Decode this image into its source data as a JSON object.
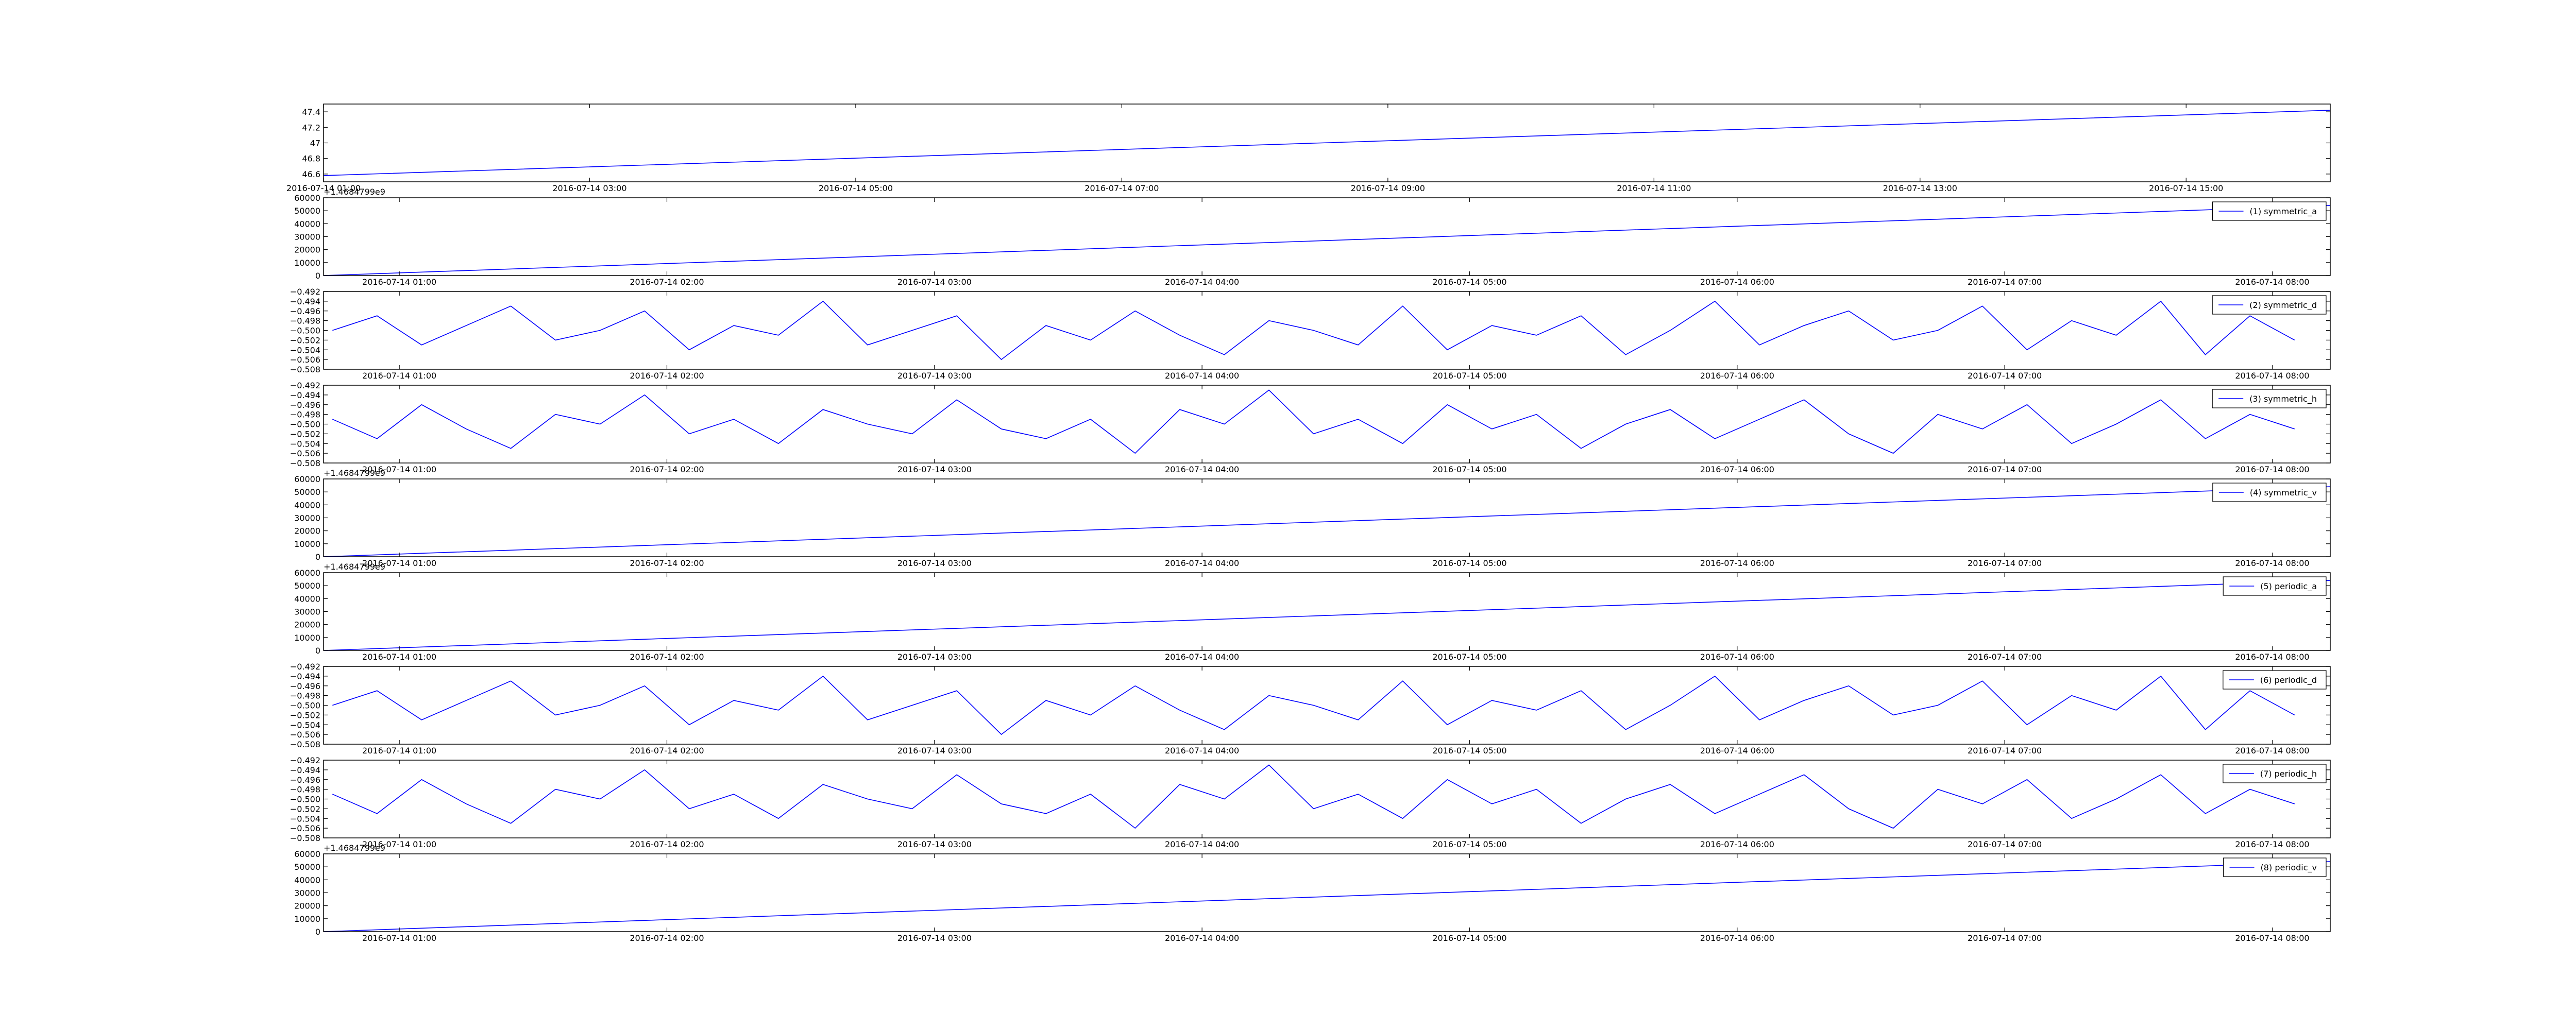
{
  "chart_data": [
    {
      "type": "line",
      "color": "#0000ff",
      "x": [
        "2016-07-14 01:00",
        "2016-07-14 08:30",
        "2016-07-14 16:05"
      ],
      "values": [
        46.58,
        47.0,
        47.42
      ],
      "xlim": [
        "2016-07-14 01:00",
        "2016-07-14 16:05"
      ],
      "xticks": [
        "2016-07-14 01:00",
        "2016-07-14 03:00",
        "2016-07-14 05:00",
        "2016-07-14 07:00",
        "2016-07-14 09:00",
        "2016-07-14 11:00",
        "2016-07-14 13:00",
        "2016-07-14 15:00"
      ],
      "ylim": [
        46.5,
        47.5
      ],
      "yticks": [
        46.6,
        46.8,
        47.0,
        47.2,
        47.4
      ]
    },
    {
      "type": "line",
      "legend": "upper right",
      "offset_text": "+1.4684799e9",
      "x": [
        "2016-07-14 00:43",
        "2016-07-14 08:13"
      ],
      "series": [
        {
          "name": "(1) symmetric_a",
          "color": "#0000ff",
          "values": [
            0,
            54000
          ]
        }
      ],
      "xlim": [
        "2016-07-14 00:43",
        "2016-07-14 08:13"
      ],
      "xticks": [
        "2016-07-14 01:00",
        "2016-07-14 02:00",
        "2016-07-14 03:00",
        "2016-07-14 04:00",
        "2016-07-14 05:00",
        "2016-07-14 06:00",
        "2016-07-14 07:00",
        "2016-07-14 08:00"
      ],
      "ylim": [
        0,
        60000
      ],
      "yticks": [
        0,
        10000,
        20000,
        30000,
        40000,
        50000,
        60000
      ]
    },
    {
      "type": "line",
      "legend": "upper right",
      "x": [
        "2016-07-14 00:45",
        "2016-07-14 00:55",
        "2016-07-14 01:05",
        "2016-07-14 01:15",
        "2016-07-14 01:25",
        "2016-07-14 01:35",
        "2016-07-14 01:45",
        "2016-07-14 01:55",
        "2016-07-14 02:05",
        "2016-07-14 02:15",
        "2016-07-14 02:25",
        "2016-07-14 02:35",
        "2016-07-14 02:45",
        "2016-07-14 02:55",
        "2016-07-14 03:05",
        "2016-07-14 03:15",
        "2016-07-14 03:25",
        "2016-07-14 03:35",
        "2016-07-14 03:45",
        "2016-07-14 03:55",
        "2016-07-14 04:05",
        "2016-07-14 04:15",
        "2016-07-14 04:25",
        "2016-07-14 04:35",
        "2016-07-14 04:45",
        "2016-07-14 04:55",
        "2016-07-14 05:05",
        "2016-07-14 05:15",
        "2016-07-14 05:25",
        "2016-07-14 05:35",
        "2016-07-14 05:45",
        "2016-07-14 05:55",
        "2016-07-14 06:05",
        "2016-07-14 06:15",
        "2016-07-14 06:25",
        "2016-07-14 06:35",
        "2016-07-14 06:45",
        "2016-07-14 06:55",
        "2016-07-14 07:05",
        "2016-07-14 07:15",
        "2016-07-14 07:25",
        "2016-07-14 07:35",
        "2016-07-14 07:45",
        "2016-07-14 07:55",
        "2016-07-14 08:05"
      ],
      "series": [
        {
          "name": "(2) symmetric_d",
          "color": "#0000ff",
          "values": [
            -0.5,
            -0.497,
            -0.503,
            -0.499,
            -0.495,
            -0.502,
            -0.5,
            -0.496,
            -0.504,
            -0.499,
            -0.501,
            -0.494,
            -0.503,
            -0.5,
            -0.497,
            -0.506,
            -0.499,
            -0.502,
            -0.496,
            -0.501,
            -0.505,
            -0.498,
            -0.5,
            -0.503,
            -0.495,
            -0.504,
            -0.499,
            -0.501,
            -0.497,
            -0.505,
            -0.5,
            -0.494,
            -0.503,
            -0.499,
            -0.496,
            -0.502,
            -0.5,
            -0.495,
            -0.504,
            -0.498,
            -0.501,
            -0.494,
            -0.505,
            -0.497,
            -0.502
          ]
        }
      ],
      "xlim": [
        "2016-07-14 00:43",
        "2016-07-14 08:13"
      ],
      "xticks": [
        "2016-07-14 01:00",
        "2016-07-14 02:00",
        "2016-07-14 03:00",
        "2016-07-14 04:00",
        "2016-07-14 05:00",
        "2016-07-14 06:00",
        "2016-07-14 07:00",
        "2016-07-14 08:00"
      ],
      "ylim": [
        -0.508,
        -0.492
      ],
      "yticks": [
        {
          "value": -0.508,
          "label": "−0.508"
        },
        {
          "value": -0.506,
          "label": "−0.506"
        },
        {
          "value": -0.504,
          "label": "−0.504"
        },
        {
          "value": -0.502,
          "label": "−0.502"
        },
        {
          "value": -0.5,
          "label": "−0.500"
        },
        {
          "value": -0.498,
          "label": "−0.498"
        },
        {
          "value": -0.496,
          "label": "−0.496"
        },
        {
          "value": -0.494,
          "label": "−0.494"
        },
        {
          "value": -0.492,
          "label": "−0.492"
        }
      ]
    },
    {
      "type": "line",
      "legend": "upper right",
      "x": [
        "2016-07-14 00:45",
        "2016-07-14 00:55",
        "2016-07-14 01:05",
        "2016-07-14 01:15",
        "2016-07-14 01:25",
        "2016-07-14 01:35",
        "2016-07-14 01:45",
        "2016-07-14 01:55",
        "2016-07-14 02:05",
        "2016-07-14 02:15",
        "2016-07-14 02:25",
        "2016-07-14 02:35",
        "2016-07-14 02:45",
        "2016-07-14 02:55",
        "2016-07-14 03:05",
        "2016-07-14 03:15",
        "2016-07-14 03:25",
        "2016-07-14 03:35",
        "2016-07-14 03:45",
        "2016-07-14 03:55",
        "2016-07-14 04:05",
        "2016-07-14 04:15",
        "2016-07-14 04:25",
        "2016-07-14 04:35",
        "2016-07-14 04:45",
        "2016-07-14 04:55",
        "2016-07-14 05:05",
        "2016-07-14 05:15",
        "2016-07-14 05:25",
        "2016-07-14 05:35",
        "2016-07-14 05:45",
        "2016-07-14 05:55",
        "2016-07-14 06:05",
        "2016-07-14 06:15",
        "2016-07-14 06:25",
        "2016-07-14 06:35",
        "2016-07-14 06:45",
        "2016-07-14 06:55",
        "2016-07-14 07:05",
        "2016-07-14 07:15",
        "2016-07-14 07:25",
        "2016-07-14 07:35",
        "2016-07-14 07:45",
        "2016-07-14 07:55",
        "2016-07-14 08:05"
      ],
      "series": [
        {
          "name": "(3) symmetric_h",
          "color": "#0000ff",
          "values": [
            -0.499,
            -0.503,
            -0.496,
            -0.501,
            -0.505,
            -0.498,
            -0.5,
            -0.494,
            -0.502,
            -0.499,
            -0.504,
            -0.497,
            -0.5,
            -0.502,
            -0.495,
            -0.501,
            -0.503,
            -0.499,
            -0.506,
            -0.497,
            -0.5,
            -0.493,
            -0.502,
            -0.499,
            -0.504,
            -0.496,
            -0.501,
            -0.498,
            -0.505,
            -0.5,
            -0.497,
            -0.503,
            -0.499,
            -0.495,
            -0.502,
            -0.506,
            -0.498,
            -0.501,
            -0.496,
            -0.504,
            -0.5,
            -0.495,
            -0.503,
            -0.498,
            -0.501
          ]
        }
      ],
      "xlim": [
        "2016-07-14 00:43",
        "2016-07-14 08:13"
      ],
      "xticks": [
        "2016-07-14 01:00",
        "2016-07-14 02:00",
        "2016-07-14 03:00",
        "2016-07-14 04:00",
        "2016-07-14 05:00",
        "2016-07-14 06:00",
        "2016-07-14 07:00",
        "2016-07-14 08:00"
      ],
      "ylim": [
        -0.508,
        -0.492
      ],
      "yticks": [
        {
          "value": -0.508,
          "label": "−0.508"
        },
        {
          "value": -0.506,
          "label": "−0.506"
        },
        {
          "value": -0.504,
          "label": "−0.504"
        },
        {
          "value": -0.502,
          "label": "−0.502"
        },
        {
          "value": -0.5,
          "label": "−0.500"
        },
        {
          "value": -0.498,
          "label": "−0.498"
        },
        {
          "value": -0.496,
          "label": "−0.496"
        },
        {
          "value": -0.494,
          "label": "−0.494"
        },
        {
          "value": -0.492,
          "label": "−0.492"
        }
      ]
    },
    {
      "type": "line",
      "legend": "upper right",
      "offset_text": "+1.4684799e9",
      "x": [
        "2016-07-14 00:43",
        "2016-07-14 08:13"
      ],
      "series": [
        {
          "name": "(4) symmetric_v",
          "color": "#0000ff",
          "values": [
            0,
            54000
          ]
        }
      ],
      "xlim": [
        "2016-07-14 00:43",
        "2016-07-14 08:13"
      ],
      "xticks": [
        "2016-07-14 01:00",
        "2016-07-14 02:00",
        "2016-07-14 03:00",
        "2016-07-14 04:00",
        "2016-07-14 05:00",
        "2016-07-14 06:00",
        "2016-07-14 07:00",
        "2016-07-14 08:00"
      ],
      "ylim": [
        0,
        60000
      ],
      "yticks": [
        0,
        10000,
        20000,
        30000,
        40000,
        50000,
        60000
      ]
    },
    {
      "type": "line",
      "legend": "upper right",
      "offset_text": "+1.4684799e9",
      "x": [
        "2016-07-14 00:43",
        "2016-07-14 08:13"
      ],
      "series": [
        {
          "name": "(5) periodic_a",
          "color": "#0000ff",
          "values": [
            0,
            54000
          ]
        }
      ],
      "xlim": [
        "2016-07-14 00:43",
        "2016-07-14 08:13"
      ],
      "xticks": [
        "2016-07-14 01:00",
        "2016-07-14 02:00",
        "2016-07-14 03:00",
        "2016-07-14 04:00",
        "2016-07-14 05:00",
        "2016-07-14 06:00",
        "2016-07-14 07:00",
        "2016-07-14 08:00"
      ],
      "ylim": [
        0,
        60000
      ],
      "yticks": [
        0,
        10000,
        20000,
        30000,
        40000,
        50000,
        60000
      ]
    },
    {
      "type": "line",
      "legend": "upper right",
      "x": [
        "2016-07-14 00:45",
        "2016-07-14 00:55",
        "2016-07-14 01:05",
        "2016-07-14 01:15",
        "2016-07-14 01:25",
        "2016-07-14 01:35",
        "2016-07-14 01:45",
        "2016-07-14 01:55",
        "2016-07-14 02:05",
        "2016-07-14 02:15",
        "2016-07-14 02:25",
        "2016-07-14 02:35",
        "2016-07-14 02:45",
        "2016-07-14 02:55",
        "2016-07-14 03:05",
        "2016-07-14 03:15",
        "2016-07-14 03:25",
        "2016-07-14 03:35",
        "2016-07-14 03:45",
        "2016-07-14 03:55",
        "2016-07-14 04:05",
        "2016-07-14 04:15",
        "2016-07-14 04:25",
        "2016-07-14 04:35",
        "2016-07-14 04:45",
        "2016-07-14 04:55",
        "2016-07-14 05:05",
        "2016-07-14 05:15",
        "2016-07-14 05:25",
        "2016-07-14 05:35",
        "2016-07-14 05:45",
        "2016-07-14 05:55",
        "2016-07-14 06:05",
        "2016-07-14 06:15",
        "2016-07-14 06:25",
        "2016-07-14 06:35",
        "2016-07-14 06:45",
        "2016-07-14 06:55",
        "2016-07-14 07:05",
        "2016-07-14 07:15",
        "2016-07-14 07:25",
        "2016-07-14 07:35",
        "2016-07-14 07:45",
        "2016-07-14 07:55",
        "2016-07-14 08:05"
      ],
      "series": [
        {
          "name": "(6) periodic_d",
          "color": "#0000ff",
          "values": [
            -0.5,
            -0.497,
            -0.503,
            -0.499,
            -0.495,
            -0.502,
            -0.5,
            -0.496,
            -0.504,
            -0.499,
            -0.501,
            -0.494,
            -0.503,
            -0.5,
            -0.497,
            -0.506,
            -0.499,
            -0.502,
            -0.496,
            -0.501,
            -0.505,
            -0.498,
            -0.5,
            -0.503,
            -0.495,
            -0.504,
            -0.499,
            -0.501,
            -0.497,
            -0.505,
            -0.5,
            -0.494,
            -0.503,
            -0.499,
            -0.496,
            -0.502,
            -0.5,
            -0.495,
            -0.504,
            -0.498,
            -0.501,
            -0.494,
            -0.505,
            -0.497,
            -0.502
          ]
        }
      ],
      "xlim": [
        "2016-07-14 00:43",
        "2016-07-14 08:13"
      ],
      "xticks": [
        "2016-07-14 01:00",
        "2016-07-14 02:00",
        "2016-07-14 03:00",
        "2016-07-14 04:00",
        "2016-07-14 05:00",
        "2016-07-14 06:00",
        "2016-07-14 07:00",
        "2016-07-14 08:00"
      ],
      "ylim": [
        -0.508,
        -0.492
      ],
      "yticks": [
        {
          "value": -0.508,
          "label": "−0.508"
        },
        {
          "value": -0.506,
          "label": "−0.506"
        },
        {
          "value": -0.504,
          "label": "−0.504"
        },
        {
          "value": -0.502,
          "label": "−0.502"
        },
        {
          "value": -0.5,
          "label": "−0.500"
        },
        {
          "value": -0.498,
          "label": "−0.498"
        },
        {
          "value": -0.496,
          "label": "−0.496"
        },
        {
          "value": -0.494,
          "label": "−0.494"
        },
        {
          "value": -0.492,
          "label": "−0.492"
        }
      ]
    },
    {
      "type": "line",
      "legend": "upper right",
      "x": [
        "2016-07-14 00:45",
        "2016-07-14 00:55",
        "2016-07-14 01:05",
        "2016-07-14 01:15",
        "2016-07-14 01:25",
        "2016-07-14 01:35",
        "2016-07-14 01:45",
        "2016-07-14 01:55",
        "2016-07-14 02:05",
        "2016-07-14 02:15",
        "2016-07-14 02:25",
        "2016-07-14 02:35",
        "2016-07-14 02:45",
        "2016-07-14 02:55",
        "2016-07-14 03:05",
        "2016-07-14 03:15",
        "2016-07-14 03:25",
        "2016-07-14 03:35",
        "2016-07-14 03:45",
        "2016-07-14 03:55",
        "2016-07-14 04:05",
        "2016-07-14 04:15",
        "2016-07-14 04:25",
        "2016-07-14 04:35",
        "2016-07-14 04:45",
        "2016-07-14 04:55",
        "2016-07-14 05:05",
        "2016-07-14 05:15",
        "2016-07-14 05:25",
        "2016-07-14 05:35",
        "2016-07-14 05:45",
        "2016-07-14 05:55",
        "2016-07-14 06:05",
        "2016-07-14 06:15",
        "2016-07-14 06:25",
        "2016-07-14 06:35",
        "2016-07-14 06:45",
        "2016-07-14 06:55",
        "2016-07-14 07:05",
        "2016-07-14 07:15",
        "2016-07-14 07:25",
        "2016-07-14 07:35",
        "2016-07-14 07:45",
        "2016-07-14 07:55",
        "2016-07-14 08:05"
      ],
      "series": [
        {
          "name": "(7) periodic_h",
          "color": "#0000ff",
          "values": [
            -0.499,
            -0.503,
            -0.496,
            -0.501,
            -0.505,
            -0.498,
            -0.5,
            -0.494,
            -0.502,
            -0.499,
            -0.504,
            -0.497,
            -0.5,
            -0.502,
            -0.495,
            -0.501,
            -0.503,
            -0.499,
            -0.506,
            -0.497,
            -0.5,
            -0.493,
            -0.502,
            -0.499,
            -0.504,
            -0.496,
            -0.501,
            -0.498,
            -0.505,
            -0.5,
            -0.497,
            -0.503,
            -0.499,
            -0.495,
            -0.502,
            -0.506,
            -0.498,
            -0.501,
            -0.496,
            -0.504,
            -0.5,
            -0.495,
            -0.503,
            -0.498,
            -0.501
          ]
        }
      ],
      "xlim": [
        "2016-07-14 00:43",
        "2016-07-14 08:13"
      ],
      "xticks": [
        "2016-07-14 01:00",
        "2016-07-14 02:00",
        "2016-07-14 03:00",
        "2016-07-14 04:00",
        "2016-07-14 05:00",
        "2016-07-14 06:00",
        "2016-07-14 07:00",
        "2016-07-14 08:00"
      ],
      "ylim": [
        -0.508,
        -0.492
      ],
      "yticks": [
        {
          "value": -0.508,
          "label": "−0.508"
        },
        {
          "value": -0.506,
          "label": "−0.506"
        },
        {
          "value": -0.504,
          "label": "−0.504"
        },
        {
          "value": -0.502,
          "label": "−0.502"
        },
        {
          "value": -0.5,
          "label": "−0.500"
        },
        {
          "value": -0.498,
          "label": "−0.498"
        },
        {
          "value": -0.496,
          "label": "−0.496"
        },
        {
          "value": -0.494,
          "label": "−0.494"
        },
        {
          "value": -0.492,
          "label": "−0.492"
        }
      ]
    },
    {
      "type": "line",
      "legend": "upper right",
      "offset_text": "+1.4684799e9",
      "x": [
        "2016-07-14 00:43",
        "2016-07-14 08:13"
      ],
      "series": [
        {
          "name": "(8) periodic_v",
          "color": "#0000ff",
          "values": [
            0,
            54000
          ]
        }
      ],
      "xlim": [
        "2016-07-14 00:43",
        "2016-07-14 08:13"
      ],
      "xticks": [
        "2016-07-14 01:00",
        "2016-07-14 02:00",
        "2016-07-14 03:00",
        "2016-07-14 04:00",
        "2016-07-14 05:00",
        "2016-07-14 06:00",
        "2016-07-14 07:00",
        "2016-07-14 08:00"
      ],
      "ylim": [
        0,
        60000
      ],
      "yticks": [
        0,
        10000,
        20000,
        30000,
        40000,
        50000,
        60000
      ]
    }
  ]
}
